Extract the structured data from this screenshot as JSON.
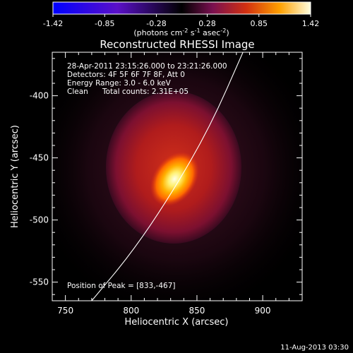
{
  "chart_data": {
    "type": "heatmap",
    "title": "Reconstructed RHESSI Image",
    "xlabel": "Heliocentric X (arcsec)",
    "ylabel": "Heliocentric Y (arcsec)",
    "xlim": [
      740,
      930
    ],
    "ylim": [
      -565,
      -365
    ],
    "x_ticks": [
      "750",
      "800",
      "850",
      "900"
    ],
    "y_ticks": [
      "-400",
      "-450",
      "-500",
      "-550"
    ],
    "colorbar": {
      "ticks": [
        "-1.42",
        "-0.85",
        "-0.28",
        "0.28",
        "0.85",
        "1.42"
      ],
      "range": [
        -1.42,
        1.42
      ],
      "unit_base": "(photons cm",
      "unit_exp1": "-2",
      "unit_mid": " s",
      "unit_exp2": "-1",
      "unit_asec": " asec",
      "unit_exp3": "-2",
      "unit_end": ")"
    },
    "annotations": [
      "28-Apr-2011 23:15:26.000 to 23:21:26.000",
      "Detectors: 4F 5F 6F 7F 8F, Att 0",
      "Energy Range: 3.0 - 6.0 keV",
      "Clean",
      "Total counts: 2.31E+05"
    ],
    "peak_label": "Position of Peak = [833,-467]",
    "peak": [
      833,
      -467
    ],
    "limb_curve": [
      [
        770,
        -565
      ],
      [
        800,
        -527
      ],
      [
        830,
        -480
      ],
      [
        860,
        -425
      ],
      [
        885,
        -365
      ]
    ]
  },
  "footer": {
    "date": "11-Aug-2013 03:30"
  }
}
